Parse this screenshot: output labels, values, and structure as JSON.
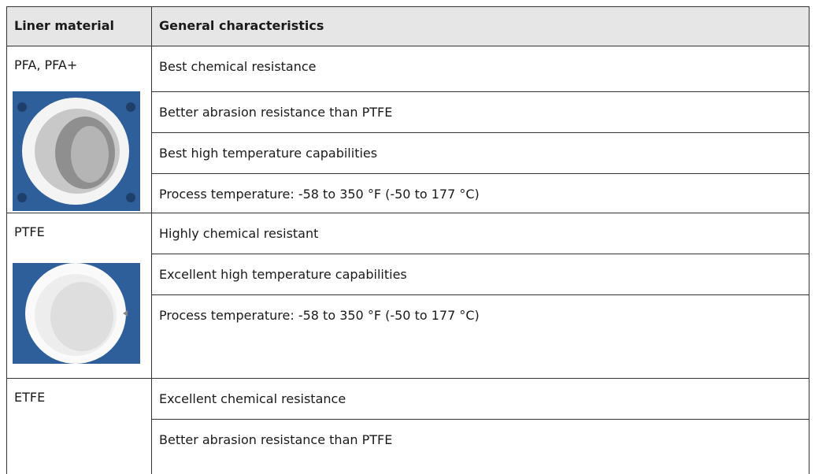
{
  "table": {
    "header": [
      "Liner material",
      "General characteristics"
    ],
    "rows": [
      {
        "material": "PFA, PFA+",
        "characteristics": [
          "Best chemical resistance",
          "Better abrasion resistance than PTFE",
          "Best high temperature capabilities",
          "Process temperature: -58 to 350 °F (-50 to 177 °C)"
        ]
      },
      {
        "material": "PTFE",
        "characteristics": [
          "Highly chemical resistant",
          "Excellent high temperature capabilities",
          "Process temperature: -58 to 350 °F (-50 to 177 °C)"
        ]
      },
      {
        "material": "ETFE",
        "characteristics": [
          "Excellent chemical resistance",
          "Better abrasion resistance than PTFE"
        ]
      }
    ]
  }
}
